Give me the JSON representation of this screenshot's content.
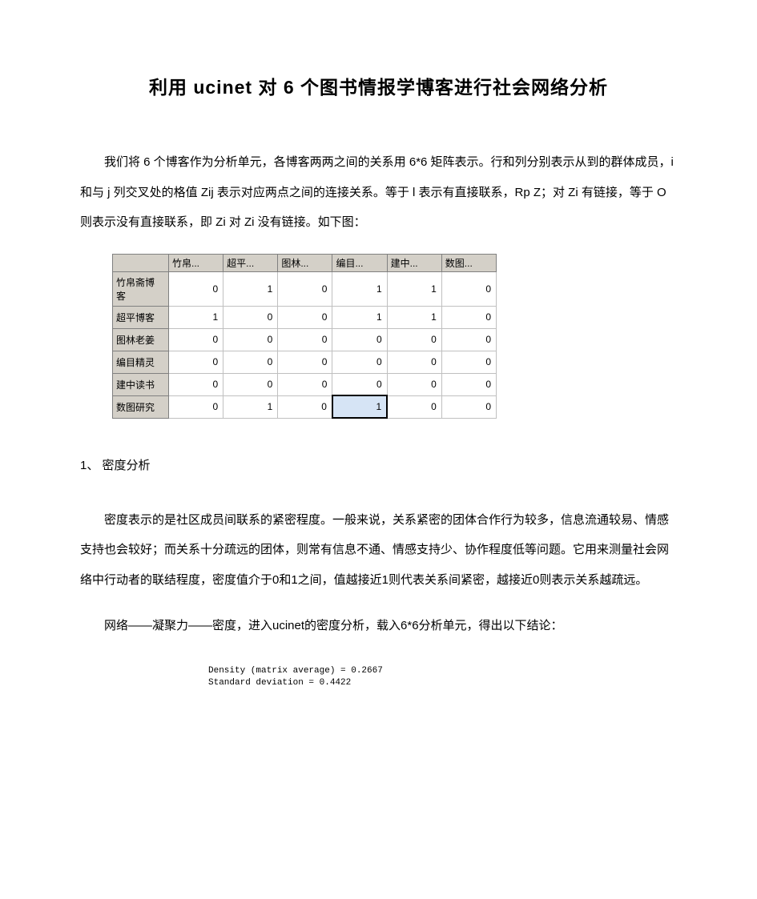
{
  "title": "利用 ucinet 对 6 个图书情报学博客进行社会网络分析",
  "intro": "我们将 6 个博客作为分析单元，各博客两两之间的关系用 6*6 矩阵表示。行和列分别表示从到的群体成员，i 和与 j 列交叉处的格值 Zij 表示对应两点之间的连接关系。等于 l 表示有直接联系，Rp Z；对 Zi 有链接，等于 O 则表示没有直接联系，即 Zi 对 Zi 没有链接。如下图：",
  "matrix": {
    "columns": [
      "竹帛...",
      "超平...",
      "图林...",
      "编目...",
      "建中...",
      "数图..."
    ],
    "row_headers": [
      "竹帛斋博客",
      "超平博客",
      "图林老姜",
      "编目精灵",
      "建中读书",
      "数图研究"
    ],
    "rows": [
      [
        0,
        1,
        0,
        1,
        1,
        0
      ],
      [
        1,
        0,
        0,
        1,
        1,
        0
      ],
      [
        0,
        0,
        0,
        0,
        0,
        0
      ],
      [
        0,
        0,
        0,
        0,
        0,
        0
      ],
      [
        0,
        0,
        0,
        0,
        0,
        0
      ],
      [
        0,
        1,
        0,
        1,
        0,
        0
      ]
    ],
    "selected_cell": {
      "row": 5,
      "col": 3
    },
    "header_bg": "#d4d0c8",
    "cell_bg": "#ffffff",
    "selected_bg": "#d6e4f5",
    "border_color": "#808080",
    "cell_border": "#c0c0c0"
  },
  "section1": {
    "heading": "1、  密度分析",
    "p1": "密度表示的是社区成员间联系的紧密程度。一般来说，关系紧密的团体合作行为较多，信息流通较易、情感支持也会较好；而关系十分疏远的团体，则常有信息不通、情感支持少、协作程度低等问题。它用来测量社会网络中行动者的联结程度，密度值介于0和1之间，值越接近1则代表关系间紧密，越接近0则表示关系越疏远。",
    "p2": "网络——凝聚力——密度，进入ucinet的密度分析，载入6*6分析单元，得出以下结论：",
    "output": {
      "line1": "Density (matrix average) = 0.2667",
      "line2": "Standard deviation = 0.4422"
    }
  }
}
